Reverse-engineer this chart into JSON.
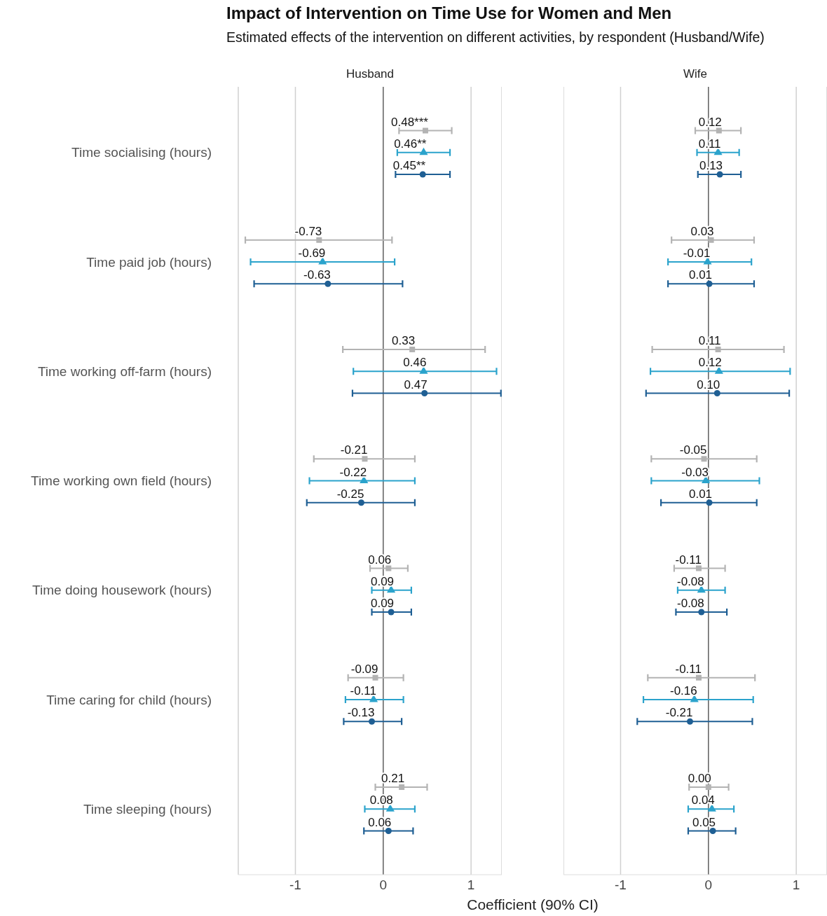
{
  "chart_data": [
    {
      "type": "scatter",
      "orientation": "horizontal",
      "title": "Impact of Intervention on Time Use for Women and Men",
      "subtitle": "Estimated effects of the intervention on different activities, by respondent (Husband/Wife)",
      "xlabel": "Coefficient (90% CI)",
      "annotations": [
        "Husband"
      ],
      "categories": [
        "Time socialising (hours)",
        "Time paid job (hours)",
        "Time working off-farm (hours)",
        "Time working own field (hours)",
        "Time doing housework (hours)",
        "Time caring for child (hours)",
        "Time sleeping (hours)"
      ],
      "xlim": [
        -1.65,
        1.35
      ],
      "xticks": [
        -1,
        0,
        1
      ],
      "grid": "x",
      "ref_lines": [
        {
          "axis": "x",
          "value": 0,
          "color": "#555555"
        }
      ],
      "series": [
        {
          "color": "#b3b3b3",
          "marker": "square",
          "values": [
            0.48,
            -0.73,
            0.33,
            -0.21,
            0.06,
            -0.09,
            0.21
          ],
          "errors": [
            [
              0.18,
              0.78
            ],
            [
              -1.57,
              0.1
            ],
            [
              -0.46,
              1.16
            ],
            [
              -0.79,
              0.36
            ],
            [
              -0.15,
              0.28
            ],
            [
              -0.4,
              0.23
            ],
            [
              -0.09,
              0.5
            ]
          ],
          "value_labels": [
            "0.48***",
            "-0.73",
            "0.33",
            "-0.21",
            "0.06",
            "-0.09",
            "0.21"
          ]
        },
        {
          "color": "#2ba3cc",
          "marker": "triangle",
          "values": [
            0.46,
            -0.69,
            0.46,
            -0.22,
            0.09,
            -0.11,
            0.08
          ],
          "errors": [
            [
              0.16,
              0.76
            ],
            [
              -1.51,
              0.13
            ],
            [
              -0.34,
              1.29
            ],
            [
              -0.84,
              0.36
            ],
            [
              -0.13,
              0.32
            ],
            [
              -0.43,
              0.23
            ],
            [
              -0.21,
              0.36
            ]
          ],
          "value_labels": [
            "0.46**",
            "-0.69",
            "0.46",
            "-0.22",
            "0.09",
            "-0.11",
            "0.08"
          ]
        },
        {
          "color": "#1f5f94",
          "marker": "circle",
          "values": [
            0.45,
            -0.63,
            0.47,
            -0.25,
            0.09,
            -0.13,
            0.06
          ],
          "errors": [
            [
              0.14,
              0.76
            ],
            [
              -1.47,
              0.22
            ],
            [
              -0.35,
              1.34
            ],
            [
              -0.87,
              0.36
            ],
            [
              -0.13,
              0.32
            ],
            [
              -0.45,
              0.21
            ],
            [
              -0.22,
              0.34
            ]
          ],
          "value_labels": [
            "0.45**",
            "-0.63",
            "0.47",
            "-0.25",
            "0.09",
            "-0.13",
            "0.06"
          ]
        }
      ]
    },
    {
      "type": "scatter",
      "orientation": "horizontal",
      "annotations": [
        "Wife"
      ],
      "tick_labels": "x",
      "xlim": [
        -1.65,
        1.35
      ],
      "xticks": [
        -1,
        0,
        1
      ],
      "grid": "x",
      "ref_lines": [
        {
          "axis": "x",
          "value": 0,
          "color": "#555555"
        }
      ],
      "series": [
        {
          "color": "#b3b3b3",
          "marker": "square",
          "values": [
            0.12,
            0.03,
            0.11,
            -0.05,
            -0.11,
            -0.11,
            0.0
          ],
          "errors": [
            [
              -0.15,
              0.37
            ],
            [
              -0.42,
              0.52
            ],
            [
              -0.64,
              0.86
            ],
            [
              -0.65,
              0.55
            ],
            [
              -0.39,
              0.19
            ],
            [
              -0.69,
              0.53
            ],
            [
              -0.22,
              0.23
            ]
          ],
          "value_labels": [
            "0.12",
            "0.03",
            "0.11",
            "-0.05",
            "-0.11",
            "-0.11",
            "0.00"
          ]
        },
        {
          "color": "#2ba3cc",
          "marker": "triangle",
          "values": [
            0.11,
            -0.01,
            0.12,
            -0.03,
            -0.08,
            -0.16,
            0.04
          ],
          "errors": [
            [
              -0.13,
              0.35
            ],
            [
              -0.46,
              0.49
            ],
            [
              -0.66,
              0.93
            ],
            [
              -0.65,
              0.58
            ],
            [
              -0.35,
              0.19
            ],
            [
              -0.74,
              0.51
            ],
            [
              -0.23,
              0.29
            ]
          ],
          "value_labels": [
            "0.11",
            "-0.01",
            "0.12",
            "-0.03",
            "-0.08",
            "-0.16",
            "0.04"
          ]
        },
        {
          "color": "#1f5f94",
          "marker": "circle",
          "values": [
            0.13,
            0.01,
            0.1,
            0.01,
            -0.08,
            -0.21,
            0.05
          ],
          "errors": [
            [
              -0.12,
              0.37
            ],
            [
              -0.46,
              0.52
            ],
            [
              -0.71,
              0.92
            ],
            [
              -0.54,
              0.55
            ],
            [
              -0.37,
              0.21
            ],
            [
              -0.81,
              0.5
            ],
            [
              -0.23,
              0.31
            ]
          ],
          "value_labels": [
            "0.13",
            "0.01",
            "0.10",
            "0.01",
            "-0.08",
            "-0.21",
            "0.05"
          ]
        }
      ]
    }
  ]
}
